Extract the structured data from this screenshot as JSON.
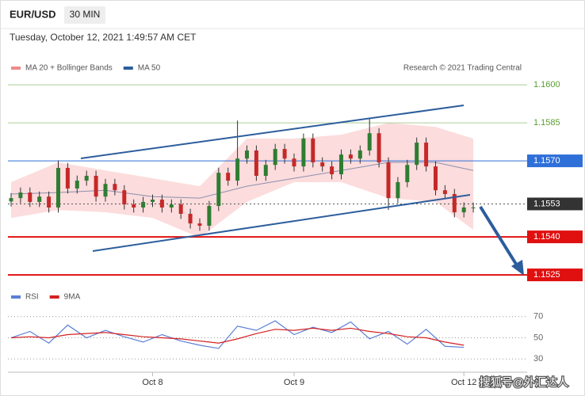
{
  "header": {
    "symbol": "EUR/USD",
    "timeframe": "30 MIN",
    "timestamp": "Tuesday, October 12, 2021 1:49:57 AM CET"
  },
  "watermark": "搜狐号@外汇达人",
  "chart_data": [
    {
      "type": "candlestick",
      "credit": "Research © 2021 Trading Central",
      "legend": [
        {
          "name": "MA 20 + Bollinger Bands",
          "color": "#f08b8b"
        },
        {
          "name": "MA 50",
          "color": "#2c5d9c"
        }
      ],
      "ylim": [
        1.15194,
        1.16116
      ],
      "yticks": [
        {
          "value": 1.16,
          "label": "1.1600"
        },
        {
          "value": 1.1585,
          "label": "1.1585"
        },
        {
          "value": 1.157,
          "label": "1.1570"
        },
        {
          "value": 1.1553,
          "label": "1.1553"
        },
        {
          "value": 1.154,
          "label": "1.1540"
        },
        {
          "value": 1.1525,
          "label": "1.1525"
        }
      ],
      "level_colors": [
        "#5a9e2f",
        "#5a9e2f",
        "#2f6fd8",
        "#333333",
        "#e01010",
        "#e01010"
      ],
      "level_styles": [
        "plain",
        "plain",
        "box",
        "box",
        "box",
        "box"
      ],
      "categories": [
        null,
        null,
        null,
        null,
        null,
        null,
        null,
        null,
        null,
        null,
        null,
        null,
        null,
        null,
        null,
        "Oct 8",
        null,
        null,
        null,
        null,
        null,
        null,
        null,
        null,
        null,
        null,
        null,
        null,
        null,
        null,
        "Oct 9",
        null,
        null,
        null,
        null,
        null,
        null,
        null,
        null,
        null,
        null,
        null,
        null,
        null,
        null,
        null,
        null,
        null,
        "Oct 12",
        null
      ],
      "open": [
        1.1554,
        1.15553,
        1.15575,
        1.15538,
        1.15559,
        1.15516,
        1.15672,
        1.15591,
        1.15622,
        1.15641,
        1.15559,
        1.15609,
        1.15584,
        1.15528,
        1.15516,
        1.15538,
        1.15547,
        1.15516,
        1.15528,
        1.15491,
        1.15453,
        1.15444,
        1.15522,
        1.15653,
        1.15622,
        1.15709,
        1.15741,
        1.15641,
        1.15684,
        1.15747,
        1.15709,
        1.15678,
        1.15788,
        1.15694,
        1.15678,
        1.15647,
        1.15725,
        1.15709,
        1.15741,
        1.15809,
        1.15694,
        1.15553,
        1.15616,
        1.15684,
        1.15772,
        1.15678,
        1.15584,
        1.15569,
        1.15497,
        1.15516
      ],
      "high": [
        1.15573,
        1.15595,
        1.15595,
        1.15579,
        1.15579,
        1.15702,
        1.15692,
        1.15642,
        1.15661,
        1.15661,
        1.15629,
        1.15629,
        1.15604,
        1.15548,
        1.15558,
        1.15567,
        1.15567,
        1.15548,
        1.15548,
        1.15511,
        1.15473,
        1.15542,
        1.15673,
        1.15673,
        1.15859,
        1.15761,
        1.15761,
        1.15704,
        1.15767,
        1.15767,
        1.15729,
        1.15808,
        1.15808,
        1.15714,
        1.15698,
        1.15745,
        1.15745,
        1.15761,
        1.15866,
        1.15829,
        1.15714,
        1.15636,
        1.15704,
        1.15792,
        1.15792,
        1.15698,
        1.15604,
        1.15589,
        1.15536,
        1.15536
      ],
      "low": [
        1.1552,
        1.15533,
        1.15518,
        1.15518,
        1.15496,
        1.15496,
        1.15571,
        1.15571,
        1.15602,
        1.15539,
        1.15539,
        1.15564,
        1.15508,
        1.15496,
        1.15496,
        1.15518,
        1.15496,
        1.15496,
        1.15471,
        1.15433,
        1.15424,
        1.15424,
        1.15502,
        1.15602,
        1.15602,
        1.15689,
        1.15621,
        1.15621,
        1.15664,
        1.15689,
        1.15658,
        1.15658,
        1.15674,
        1.15658,
        1.15627,
        1.15627,
        1.15689,
        1.15689,
        1.15721,
        1.15674,
        1.15506,
        1.15533,
        1.15596,
        1.15664,
        1.15658,
        1.15564,
        1.15549,
        1.15477,
        1.15477,
        1.15496
      ],
      "close": [
        1.15553,
        1.15575,
        1.15538,
        1.15559,
        1.15516,
        1.15672,
        1.15591,
        1.15622,
        1.15641,
        1.15559,
        1.15609,
        1.15584,
        1.15528,
        1.15516,
        1.15538,
        1.15547,
        1.15516,
        1.15528,
        1.15491,
        1.15453,
        1.15444,
        1.15522,
        1.15653,
        1.15622,
        1.15709,
        1.15741,
        1.15641,
        1.15684,
        1.15747,
        1.15709,
        1.15678,
        1.15788,
        1.15694,
        1.15678,
        1.15647,
        1.15725,
        1.15709,
        1.15741,
        1.15809,
        1.15694,
        1.15553,
        1.15616,
        1.15684,
        1.15772,
        1.15678,
        1.15584,
        1.15569,
        1.15497,
        1.15516,
        1.15516
      ],
      "overlay_x": [
        0,
        5,
        10,
        15,
        20,
        25,
        30,
        35,
        40,
        45,
        49
      ],
      "bollinger_upper": [
        1.15616,
        1.15694,
        1.15662,
        1.15631,
        1.156,
        1.15788,
        1.15788,
        1.15803,
        1.1585,
        1.15834,
        1.15788
      ],
      "bollinger_lower": [
        1.15475,
        1.15506,
        1.15497,
        1.15475,
        1.15397,
        1.15538,
        1.15616,
        1.15616,
        1.15553,
        1.15538,
        1.15428
      ],
      "ma50": [
        1.15569,
        1.15575,
        1.15584,
        1.15559,
        1.15553,
        1.156,
        1.15631,
        1.15662,
        1.15694,
        1.15694,
        1.15662
      ]
    },
    {
      "type": "line",
      "ylim": [
        25,
        81
      ],
      "yticks": [
        30,
        50,
        70
      ],
      "x": [
        0,
        2,
        4,
        6,
        8,
        10,
        12,
        14,
        16,
        18,
        20,
        22,
        24,
        26,
        28,
        30,
        32,
        34,
        36,
        38,
        40,
        42,
        44,
        46,
        48
      ],
      "series": [
        {
          "name": "RSI",
          "color": "#5b7fd6",
          "values": [
            50,
            56,
            45,
            62,
            50,
            57,
            51,
            46,
            53,
            47,
            43,
            40,
            61,
            57,
            66,
            53,
            60,
            55,
            65,
            49,
            56,
            44,
            58,
            42,
            41
          ]
        },
        {
          "name": "9MA",
          "color": "#d62020",
          "values": [
            50,
            51,
            50,
            53,
            54,
            55,
            53,
            51,
            50,
            49,
            47,
            45,
            49,
            54,
            58,
            57,
            59,
            57,
            59,
            56,
            54,
            51,
            50,
            46,
            43
          ]
        }
      ]
    }
  ]
}
